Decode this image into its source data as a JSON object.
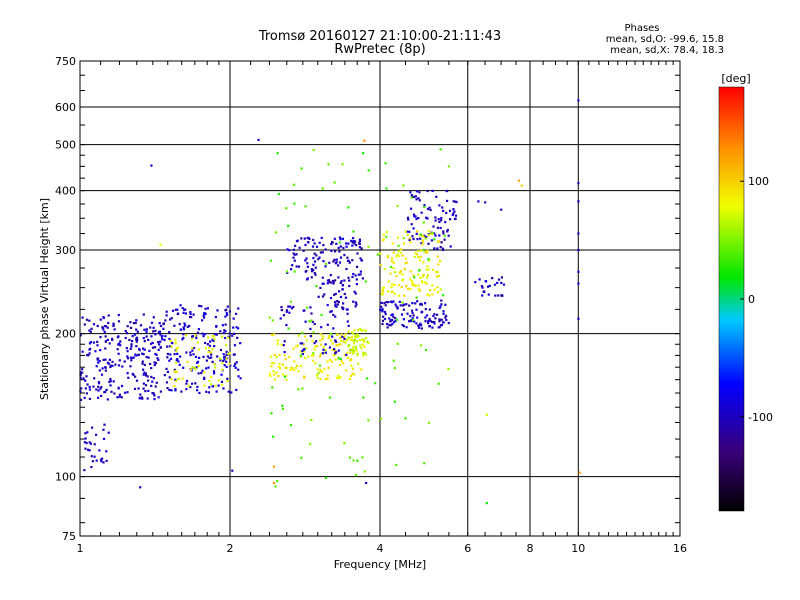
{
  "chart_data": {
    "type": "scatter",
    "title": "Tromsø 20160127 21:10:00-21:11:43",
    "subtitle": "RwPretec (8p)",
    "xlabel": "Frequency [MHz]",
    "ylabel": "Stationary phase Virtual Height [km]",
    "x_scale": "log",
    "y_scale": "log",
    "xlim": [
      1,
      16
    ],
    "ylim": [
      75,
      750
    ],
    "x_ticks": [
      1,
      2,
      4,
      6,
      8,
      10,
      16
    ],
    "x_tick_labels": [
      "1",
      "2",
      "4",
      "6",
      "8",
      "10",
      "16"
    ],
    "y_ticks": [
      75,
      100,
      200,
      300,
      400,
      500,
      600,
      750
    ],
    "y_tick_labels": [
      "75",
      "100",
      "200",
      "300",
      "400",
      "500",
      "600",
      "750"
    ],
    "grid": true,
    "stats": {
      "heading": "Phases",
      "line_o": "mean, sd,O: -99.6, 15.8",
      "line_x": "mean, sd,X: 78.4, 18.3"
    },
    "colorbar": {
      "label": "[deg]",
      "min": -180,
      "max": 180,
      "ticks": [
        100,
        0,
        -100
      ],
      "tick_labels": [
        "100",
        "0",
        "-100"
      ]
    },
    "point_clusters": [
      {
        "x": [
          1.0,
          1.45
        ],
        "y": [
          145,
          220
        ],
        "phase": -100,
        "n": 260
      },
      {
        "x": [
          1.02,
          1.15
        ],
        "y": [
          103,
          130
        ],
        "phase": -100,
        "n": 30
      },
      {
        "x": [
          1.45,
          2.1
        ],
        "y": [
          150,
          230
        ],
        "phase": -95,
        "n": 220
      },
      {
        "x": [
          1.5,
          2.0
        ],
        "y": [
          155,
          200
        ],
        "phase": 80,
        "n": 60
      },
      {
        "x": [
          2.4,
          3.7
        ],
        "y": [
          160,
          200
        ],
        "phase": 85,
        "n": 150
      },
      {
        "x": [
          2.5,
          3.5
        ],
        "y": [
          180,
          230
        ],
        "phase": -100,
        "n": 60
      },
      {
        "x": [
          2.6,
          3.7
        ],
        "y": [
          255,
          320
        ],
        "phase": -100,
        "n": 130
      },
      {
        "x": [
          3.0,
          3.6
        ],
        "y": [
          225,
          260
        ],
        "phase": -100,
        "n": 45
      },
      {
        "x": [
          3.4,
          3.8
        ],
        "y": [
          180,
          205
        ],
        "phase": 70,
        "n": 50
      },
      {
        "x": [
          4.0,
          5.5
        ],
        "y": [
          205,
          235
        ],
        "phase": -100,
        "n": 120
      },
      {
        "x": [
          4.5,
          5.7
        ],
        "y": [
          300,
          400
        ],
        "phase": -100,
        "n": 90
      },
      {
        "x": [
          4.0,
          5.3
        ],
        "y": [
          240,
          330
        ],
        "phase": 85,
        "n": 130
      },
      {
        "x": [
          6.2,
          7.1
        ],
        "y": [
          240,
          265
        ],
        "phase": -100,
        "n": 25
      },
      {
        "x": [
          2.4,
          5.5
        ],
        "y": [
          95,
          500
        ],
        "phase": 40,
        "n": 110
      }
    ],
    "isolated_points": [
      {
        "x": 1.39,
        "y": 452,
        "phase": -100
      },
      {
        "x": 2.28,
        "y": 512,
        "phase": -100
      },
      {
        "x": 1.32,
        "y": 95,
        "phase": -100
      },
      {
        "x": 2.02,
        "y": 103,
        "phase": -100
      },
      {
        "x": 2.45,
        "y": 97,
        "phase": 130
      },
      {
        "x": 2.45,
        "y": 105,
        "phase": 120
      },
      {
        "x": 3.75,
        "y": 97,
        "phase": -100
      },
      {
        "x": 3.72,
        "y": 510,
        "phase": 130
      },
      {
        "x": 3.7,
        "y": 480,
        "phase": 20
      },
      {
        "x": 6.55,
        "y": 88,
        "phase": 20
      },
      {
        "x": 6.55,
        "y": 135,
        "phase": 70
      },
      {
        "x": 6.3,
        "y": 380,
        "phase": -100
      },
      {
        "x": 6.5,
        "y": 378,
        "phase": -100
      },
      {
        "x": 7.0,
        "y": 365,
        "phase": -100
      },
      {
        "x": 7.6,
        "y": 420,
        "phase": 120
      },
      {
        "x": 7.7,
        "y": 410,
        "phase": 100
      },
      {
        "x": 10.0,
        "y": 620,
        "phase": -100
      },
      {
        "x": 10.0,
        "y": 415,
        "phase": -100
      },
      {
        "x": 10.0,
        "y": 380,
        "phase": -100
      },
      {
        "x": 10.0,
        "y": 325,
        "phase": -100
      },
      {
        "x": 10.0,
        "y": 300,
        "phase": -100
      },
      {
        "x": 10.0,
        "y": 270,
        "phase": -100
      },
      {
        "x": 10.0,
        "y": 255,
        "phase": -100
      },
      {
        "x": 10.0,
        "y": 215,
        "phase": -100
      },
      {
        "x": 10.05,
        "y": 102,
        "phase": 130
      },
      {
        "x": 1.45,
        "y": 308,
        "phase": 80
      }
    ]
  }
}
